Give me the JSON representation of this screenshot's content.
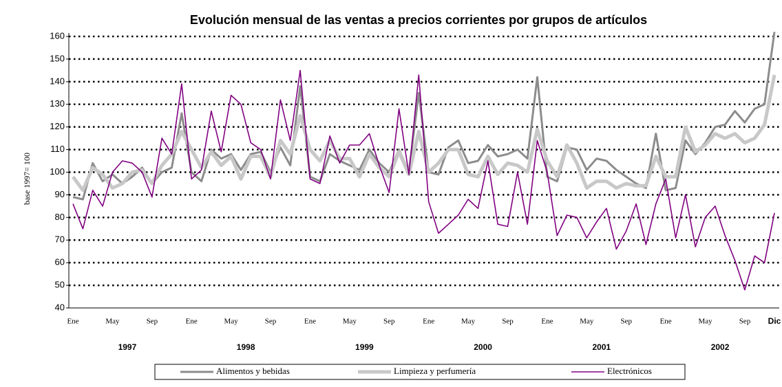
{
  "chart_data": {
    "type": "line",
    "title": "Evolución mensual de las ventas a precios corrientes por grupos de artículos",
    "y_label": "base 1997= 100",
    "categories": [
      "Ene",
      null,
      null,
      null,
      "May",
      null,
      null,
      null,
      "Sep",
      null,
      null,
      null,
      "Ene",
      null,
      null,
      null,
      "May",
      null,
      null,
      null,
      "Sep",
      null,
      null,
      null,
      "Ene",
      null,
      null,
      null,
      "May",
      null,
      null,
      null,
      "Sep",
      null,
      null,
      null,
      "Ene",
      null,
      null,
      null,
      "May",
      null,
      null,
      null,
      "Sep",
      null,
      null,
      null,
      "Ene",
      null,
      null,
      null,
      "May",
      null,
      null,
      null,
      "Sep",
      null,
      null,
      null,
      "Ene",
      null,
      null,
      null,
      "May",
      null,
      null,
      null,
      "Sep",
      null,
      null,
      "Dic"
    ],
    "year_labels": [
      "1997",
      "1998",
      "1999",
      "2000",
      "2001",
      "2002"
    ],
    "ylim": [
      40,
      160
    ],
    "yticks": [
      40,
      50,
      60,
      70,
      80,
      90,
      100,
      110,
      120,
      130,
      140,
      150,
      160
    ],
    "grid": true,
    "legend": "bottom",
    "series": [
      {
        "name": "Alimentos y bebidas",
        "color": "#8c8c8c",
        "width": 3,
        "values": [
          89,
          88,
          104,
          96,
          99,
          95,
          98,
          102,
          95,
          100,
          102,
          126,
          100,
          96,
          110,
          106,
          108,
          101,
          108,
          109,
          100,
          111,
          103,
          138,
          98,
          96,
          108,
          105,
          103,
          101,
          110,
          104,
          100,
          110,
          100,
          135,
          100,
          99,
          111,
          114,
          104,
          105,
          112,
          107,
          108,
          110,
          106,
          142,
          98,
          96,
          111,
          110,
          101,
          106,
          105,
          101,
          98,
          95,
          93,
          117,
          92,
          93,
          114,
          108,
          113,
          120,
          121,
          127,
          122,
          128,
          130,
          162
        ]
      },
      {
        "name": "Limpieza y perfumería",
        "color": "#c8c8c8",
        "width": 5,
        "values": [
          98,
          92,
          102,
          99,
          93,
          95,
          100,
          101,
          95,
          103,
          108,
          118,
          110,
          102,
          109,
          103,
          107,
          97,
          107,
          107,
          98,
          114,
          108,
          125,
          110,
          105,
          114,
          106,
          106,
          98,
          108,
          102,
          98,
          109,
          99,
          118,
          100,
          104,
          110,
          110,
          99,
          98,
          107,
          99,
          104,
          103,
          100,
          119,
          105,
          98,
          112,
          104,
          93,
          96,
          96,
          93,
          95,
          94,
          94,
          107,
          98,
          98,
          120,
          109,
          112,
          117,
          115,
          117,
          113,
          115,
          121,
          143
        ]
      },
      {
        "name": "Electrónicos",
        "color": "#800080",
        "width": 1.6,
        "values": [
          86,
          75,
          92,
          85,
          100,
          105,
          104,
          100,
          89,
          115,
          108,
          139,
          97,
          101,
          127,
          109,
          134,
          130,
          113,
          110,
          97,
          132,
          114,
          145,
          97,
          95,
          116,
          104,
          112,
          112,
          117,
          103,
          91,
          128,
          99,
          143,
          87,
          73,
          77,
          81,
          88,
          84,
          105,
          77,
          76,
          100,
          77,
          114,
          100,
          72,
          81,
          80,
          71,
          78,
          84,
          66,
          74,
          86,
          68,
          86,
          97,
          71,
          90,
          67,
          80,
          85,
          72,
          61,
          48,
          63,
          60,
          82
        ]
      }
    ]
  }
}
